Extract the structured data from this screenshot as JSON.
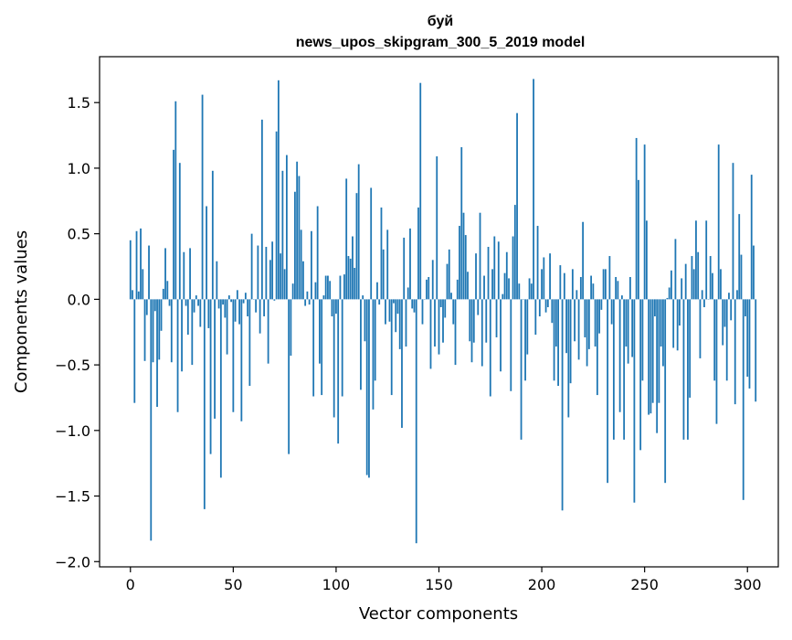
{
  "chart_data": {
    "type": "bar",
    "title_line1": "буй",
    "title_line2": "news_upos_skipgram_300_5_2019 model",
    "xlabel": "Vector components",
    "ylabel": "Components values",
    "xlim": [
      -15,
      315
    ],
    "ylim": [
      -2.04,
      1.85
    ],
    "xticks": [
      0,
      50,
      100,
      150,
      200,
      250,
      300
    ],
    "xtick_labels": [
      "0",
      "50",
      "100",
      "150",
      "200",
      "250",
      "300"
    ],
    "yticks": [
      -2.0,
      -1.5,
      -1.0,
      -0.5,
      0.0,
      0.5,
      1.0,
      1.5
    ],
    "ytick_labels": [
      "−2.0",
      "−1.5",
      "−1.0",
      "−0.5",
      "0.0",
      "0.5",
      "1.0",
      "1.5"
    ],
    "bar_color": "#1f77b4",
    "grid": false,
    "values": [
      0.45,
      0.07,
      -0.79,
      0.52,
      0.06,
      0.54,
      0.23,
      -0.47,
      -0.12,
      0.41,
      -1.84,
      -0.48,
      -0.09,
      -0.82,
      -0.46,
      -0.24,
      0.08,
      0.39,
      0.14,
      -0.05,
      -0.48,
      1.14,
      1.51,
      -0.86,
      1.04,
      -0.55,
      0.36,
      -0.05,
      -0.27,
      0.39,
      -0.5,
      -0.1,
      0.03,
      -0.05,
      -0.21,
      1.56,
      -1.6,
      0.71,
      -0.22,
      -1.18,
      0.98,
      -0.91,
      0.29,
      -0.07,
      -1.36,
      -0.04,
      -0.14,
      -0.42,
      0.03,
      -0.02,
      -0.86,
      -0.17,
      0.07,
      -0.19,
      -0.93,
      -0.03,
      0.05,
      -0.13,
      -0.66,
      0.5,
      0.0,
      -0.1,
      0.41,
      -0.26,
      1.37,
      -0.13,
      0.4,
      -0.49,
      0.3,
      0.44,
      -0.01,
      1.28,
      1.67,
      0.35,
      0.98,
      0.23,
      1.1,
      -1.18,
      -0.43,
      0.12,
      0.82,
      1.05,
      0.94,
      0.53,
      0.29,
      -0.05,
      0.06,
      -0.04,
      0.52,
      -0.74,
      0.13,
      0.71,
      -0.49,
      -0.73,
      0.03,
      0.18,
      0.18,
      0.14,
      -0.13,
      -0.9,
      -0.11,
      -1.1,
      0.18,
      -0.74,
      0.19,
      0.92,
      0.33,
      0.31,
      0.48,
      0.24,
      0.81,
      1.03,
      -0.69,
      0.03,
      -0.32,
      -1.34,
      -1.36,
      0.85,
      -0.84,
      -0.62,
      0.13,
      -0.04,
      0.7,
      0.38,
      -0.19,
      0.53,
      -0.17,
      -0.73,
      -0.03,
      -0.25,
      -0.11,
      -0.38,
      -0.98,
      0.47,
      -0.36,
      0.09,
      0.54,
      -0.07,
      -0.1,
      -1.86,
      0.7,
      1.65,
      -0.19,
      0.0,
      0.15,
      0.17,
      -0.53,
      0.3,
      -0.36,
      1.09,
      -0.42,
      -0.06,
      -0.33,
      -0.14,
      0.27,
      0.38,
      0.05,
      -0.19,
      -0.5,
      0.15,
      0.56,
      1.16,
      0.66,
      0.49,
      0.21,
      -0.32,
      -0.48,
      -0.33,
      0.35,
      -0.12,
      0.66,
      -0.51,
      0.18,
      -0.33,
      0.4,
      -0.74,
      0.23,
      0.48,
      -0.29,
      0.44,
      -0.55,
      0.04,
      0.2,
      0.36,
      0.16,
      -0.7,
      0.48,
      0.72,
      1.42,
      0.12,
      -1.07,
      0.0,
      -0.62,
      -0.42,
      0.16,
      0.12,
      1.68,
      -0.27,
      0.56,
      -0.13,
      0.23,
      0.32,
      -0.1,
      -0.06,
      0.35,
      -0.18,
      -0.62,
      -0.36,
      -0.66,
      0.26,
      -1.61,
      0.2,
      -0.41,
      -0.9,
      -0.64,
      0.23,
      -0.32,
      0.07,
      -0.46,
      0.17,
      0.59,
      -0.29,
      -0.51,
      -0.38,
      0.18,
      0.12,
      -0.36,
      -0.73,
      -0.26,
      -0.08,
      0.23,
      0.23,
      -1.4,
      0.33,
      -0.19,
      -1.07,
      0.17,
      0.14,
      -0.86,
      0.03,
      -1.07,
      -0.36,
      -0.49,
      0.17,
      -0.44,
      -1.55,
      1.23,
      0.91,
      -1.15,
      -0.62,
      1.18,
      0.6,
      -0.88,
      -0.87,
      -0.79,
      -0.13,
      -1.02,
      -0.79,
      -0.36,
      -0.51,
      -1.4,
      0.01,
      0.09,
      0.22,
      -0.37,
      0.46,
      -0.39,
      -0.2,
      0.16,
      -1.07,
      0.27,
      -1.07,
      -0.75,
      0.33,
      0.23,
      0.6,
      0.36,
      -0.45,
      0.07,
      -0.06,
      0.6,
      0.0,
      0.33,
      0.2,
      -0.62,
      -0.95,
      1.18,
      0.23,
      -0.35,
      -0.21,
      -0.62,
      0.05,
      -0.16,
      1.04,
      -0.8,
      0.07,
      0.65,
      0.34,
      -1.53,
      -0.13,
      -0.59,
      -0.68,
      0.95,
      0.41,
      -0.78
    ]
  }
}
